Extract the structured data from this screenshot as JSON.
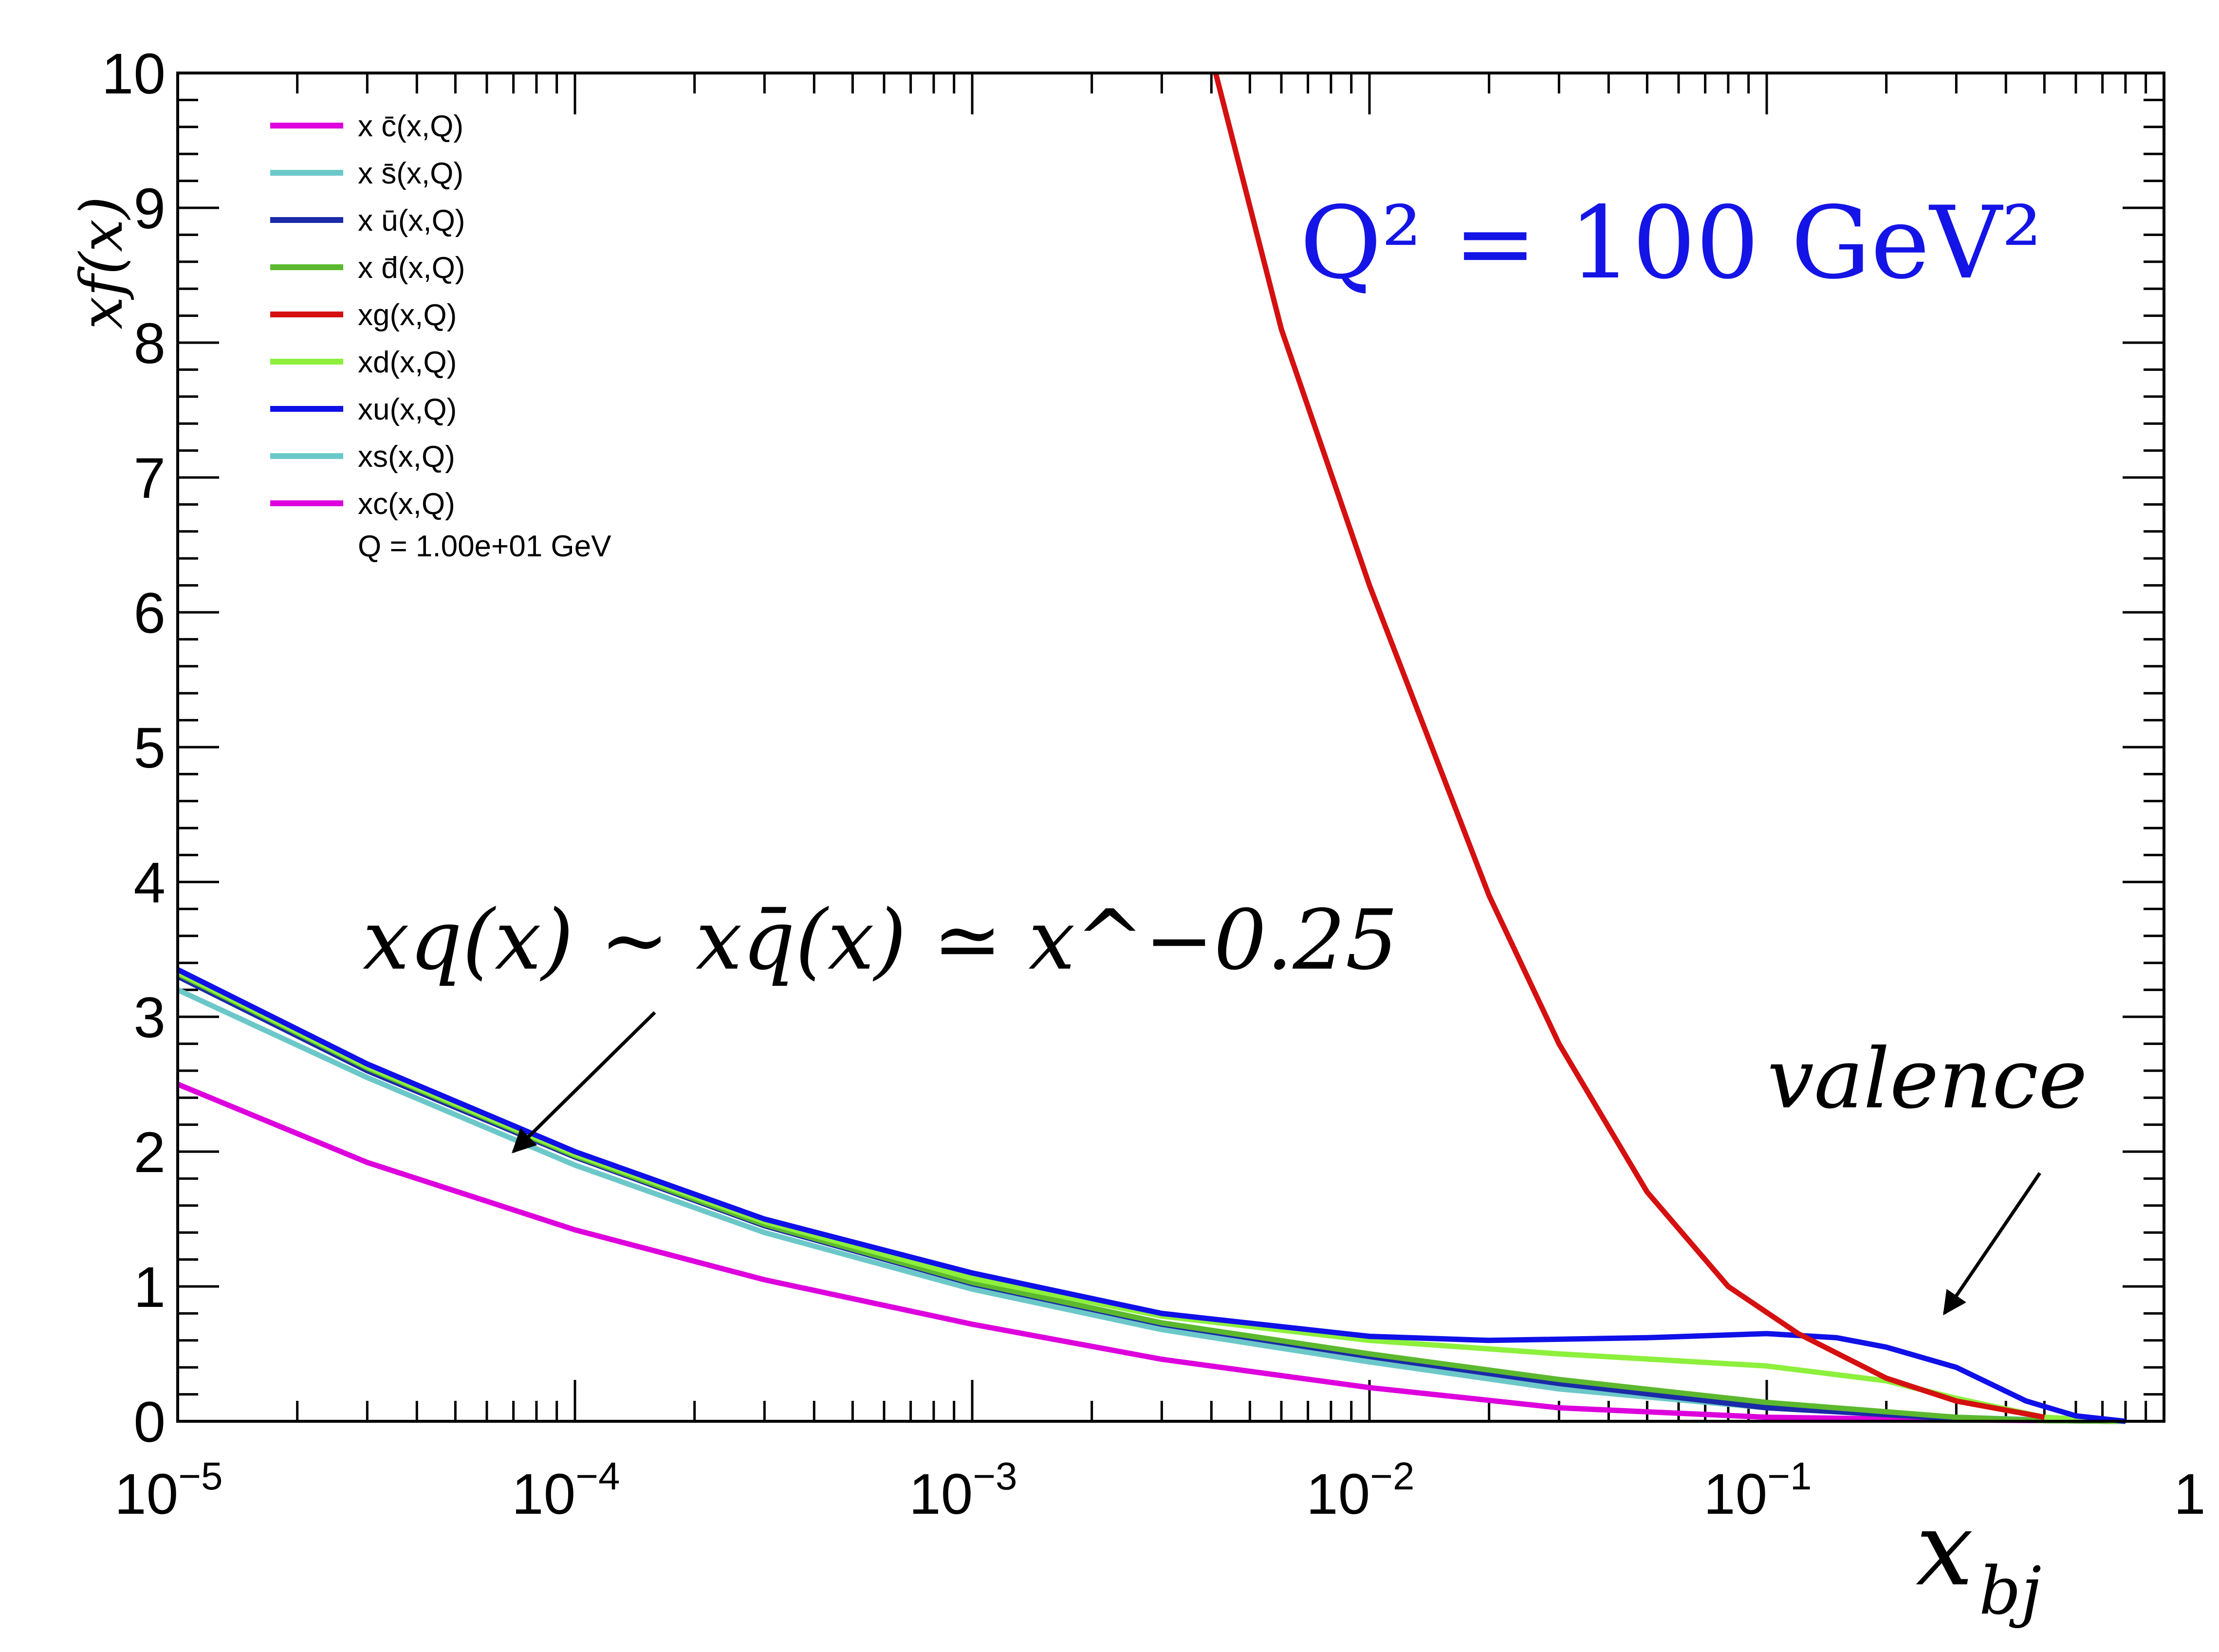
{
  "chart_data": {
    "type": "line",
    "x_scale": "log",
    "xlim": [
      1e-05,
      1
    ],
    "ylim": [
      0,
      10
    ],
    "xlabel": "x_bj",
    "xlabel_sub": "bj",
    "ylabel": "xf(x)",
    "x_ticks": [
      {
        "value": 1e-05,
        "base": "10",
        "exp": "−5"
      },
      {
        "value": 0.0001,
        "base": "10",
        "exp": "−4"
      },
      {
        "value": 0.001,
        "base": "10",
        "exp": "−3"
      },
      {
        "value": 0.01,
        "base": "10",
        "exp": "−2"
      },
      {
        "value": 0.1,
        "base": "10",
        "exp": "−1"
      },
      {
        "value": 1,
        "base": "1",
        "exp": ""
      }
    ],
    "y_ticks": [
      0,
      1,
      2,
      3,
      4,
      5,
      6,
      7,
      8,
      9,
      10
    ],
    "legend": {
      "placement": "top-left",
      "entries": [
        {
          "label": "x c̄(x,Q)",
          "color": "#dd00dd"
        },
        {
          "label": "x s̄(x,Q)",
          "color": "#6cc8c8"
        },
        {
          "label": "x ū(x,Q)",
          "color": "#1a2aa8"
        },
        {
          "label": "x d̄(x,Q)",
          "color": "#5cb82e"
        },
        {
          "label": "xg(x,Q)",
          "color": "#d41010"
        },
        {
          "label": "xd(x,Q)",
          "color": "#8cf03c"
        },
        {
          "label": "xu(x,Q)",
          "color": "#1010e8"
        },
        {
          "label": "xs(x,Q)",
          "color": "#6cc8c8"
        },
        {
          "label": "xc(x,Q)",
          "color": "#dd00dd"
        }
      ],
      "note": "Q = 1.00e+01 GeV"
    },
    "series": [
      {
        "key": "c",
        "color": "#dd00dd",
        "x": [
          1e-05,
          3e-05,
          0.0001,
          0.0003,
          0.001,
          0.003,
          0.01,
          0.03,
          0.1,
          0.3,
          0.5,
          0.8
        ],
        "y": [
          2.5,
          1.92,
          1.42,
          1.05,
          0.72,
          0.46,
          0.25,
          0.1,
          0.03,
          0.01,
          0.005,
          0.0
        ]
      },
      {
        "key": "s",
        "color": "#6cc8c8",
        "x": [
          1e-05,
          3e-05,
          0.0001,
          0.0003,
          0.001,
          0.003,
          0.01,
          0.03,
          0.1,
          0.3,
          0.5,
          0.8
        ],
        "y": [
          3.2,
          2.55,
          1.9,
          1.4,
          0.98,
          0.68,
          0.44,
          0.24,
          0.1,
          0.03,
          0.01,
          0.0
        ]
      },
      {
        "key": "ubar",
        "color": "#1a2aa8",
        "x": [
          1e-05,
          3e-05,
          0.0001,
          0.0003,
          0.001,
          0.003,
          0.01,
          0.03,
          0.1,
          0.3,
          0.5,
          0.8
        ],
        "y": [
          3.3,
          2.6,
          1.96,
          1.45,
          1.02,
          0.72,
          0.48,
          0.28,
          0.1,
          0.02,
          0.005,
          0.0
        ]
      },
      {
        "key": "dbar",
        "color": "#5cb82e",
        "x": [
          1e-05,
          3e-05,
          0.0001,
          0.0003,
          0.001,
          0.003,
          0.01,
          0.03,
          0.1,
          0.3,
          0.5,
          0.8
        ],
        "y": [
          3.32,
          2.62,
          1.97,
          1.46,
          1.03,
          0.73,
          0.5,
          0.31,
          0.14,
          0.03,
          0.005,
          0.0
        ]
      },
      {
        "key": "g",
        "color": "#d41010",
        "x": [
          0.0041,
          0.006,
          0.01,
          0.02,
          0.03,
          0.05,
          0.08,
          0.12,
          0.2,
          0.3,
          0.5
        ],
        "y": [
          10.0,
          8.1,
          6.2,
          3.9,
          2.8,
          1.7,
          1.0,
          0.65,
          0.32,
          0.15,
          0.03
        ]
      },
      {
        "key": "d",
        "color": "#8cf03c",
        "x": [
          1e-05,
          3e-05,
          0.0001,
          0.0003,
          0.001,
          0.003,
          0.01,
          0.03,
          0.1,
          0.2,
          0.3,
          0.5,
          0.8
        ],
        "y": [
          3.33,
          2.63,
          1.98,
          1.48,
          1.06,
          0.78,
          0.6,
          0.5,
          0.41,
          0.3,
          0.17,
          0.03,
          0.0
        ]
      },
      {
        "key": "u",
        "color": "#1010e8",
        "x": [
          1e-05,
          3e-05,
          0.0001,
          0.0003,
          0.001,
          0.003,
          0.01,
          0.02,
          0.05,
          0.1,
          0.15,
          0.2,
          0.3,
          0.45,
          0.6,
          0.8
        ],
        "y": [
          3.35,
          2.65,
          2.0,
          1.5,
          1.1,
          0.8,
          0.63,
          0.6,
          0.62,
          0.65,
          0.62,
          0.55,
          0.4,
          0.15,
          0.04,
          0.0
        ]
      }
    ],
    "annotations": {
      "scale_label": "Q² = 100 GeV²",
      "sea_label": "xq(x) ~ xq̄(x) ≃ x^−0.25",
      "sea_arrow_target": {
        "x": 7e-05,
        "y": 2.0
      },
      "valence_label": "valence",
      "valence_arrow_target": {
        "x": 0.28,
        "y": 0.62
      }
    }
  }
}
